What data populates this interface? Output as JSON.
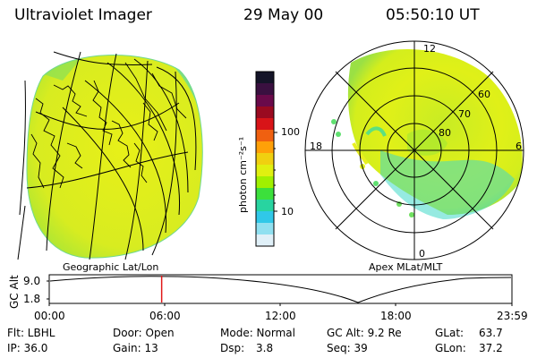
{
  "header": {
    "title": "Ultraviolet Imager",
    "date": "29 May 00",
    "time": "05:50:10 UT"
  },
  "left_panel": {
    "caption": "Geographic Lat/Lon"
  },
  "colorbar": {
    "unit_label": "photon cm⁻²s⁻¹",
    "ticks": [
      "100",
      "10"
    ],
    "colors": [
      "#141428",
      "#3a1040",
      "#6a0a4a",
      "#9a0a20",
      "#d81418",
      "#f06010",
      "#ffa008",
      "#f0d010",
      "#e0f010",
      "#a0f000",
      "#3ce03c",
      "#28d4a0",
      "#30c8e8",
      "#90e0f0",
      "#e0f0f8"
    ]
  },
  "right_panel": {
    "caption": "Apex MLat/MLT",
    "mlt_labels": {
      "top": "12",
      "left": "18",
      "right": "6",
      "bottom": "0"
    },
    "lat_labels": [
      "60",
      "70",
      "80"
    ]
  },
  "timeline": {
    "ylabel": "GC Alt",
    "ticks_y": [
      "9.0",
      "1.8"
    ],
    "ticks_x": [
      "00:00",
      "06:00",
      "12:00",
      "18:00",
      "23:59"
    ],
    "current_time_fraction": 0.243
  },
  "info": {
    "filter": "Flt: LBHL",
    "ip": "IP: 36.0",
    "door": "Door: Open",
    "gain": "Gain: 13",
    "mode": "Mode: Normal",
    "dsp_label": "Dsp:",
    "dsp_value": "3.8",
    "gc_alt": "GC Alt: 9.2 Re",
    "seq": "Seq: 39",
    "glat_label": "GLat:",
    "glat_value": "63.7",
    "glon_label": "GLon:",
    "glon_value": "37.2"
  }
}
